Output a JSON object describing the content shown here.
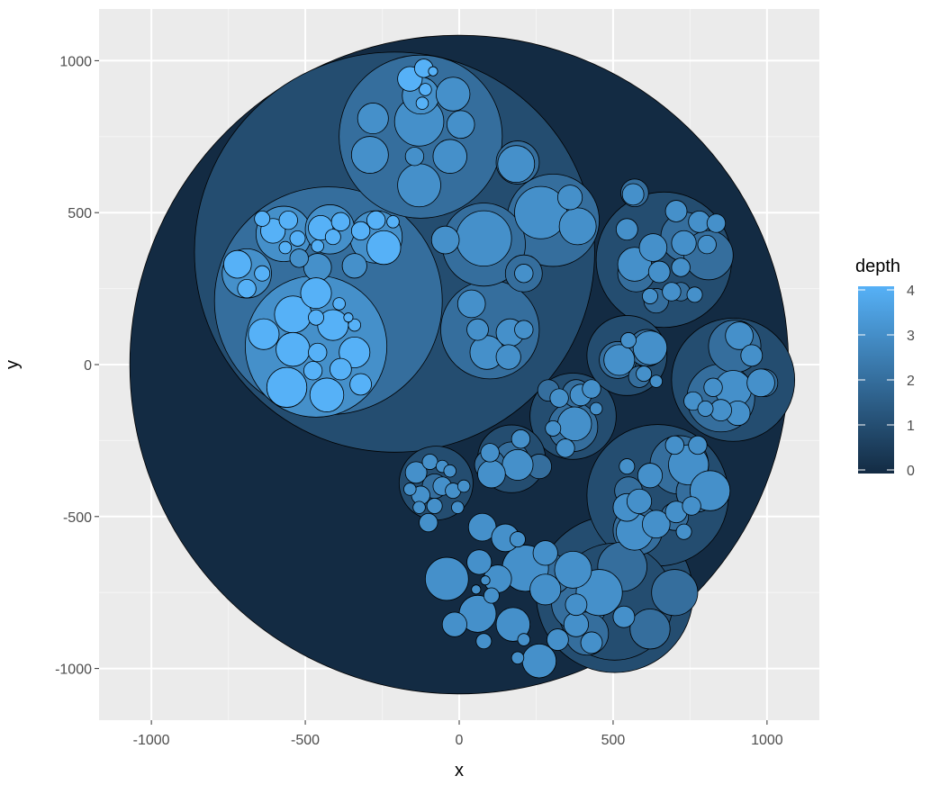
{
  "chart_data": {
    "type": "circle-packing",
    "xlabel": "x",
    "ylabel": "y",
    "xlim": [
      -1170,
      1170
    ],
    "ylim": [
      -1170,
      1170
    ],
    "x_ticks": [
      -1000,
      -500,
      0,
      500,
      1000
    ],
    "y_ticks": [
      -1000,
      -500,
      0,
      500,
      1000
    ],
    "x_tick_labels": [
      "-1000",
      "-500",
      "0",
      "500",
      "1000"
    ],
    "y_tick_labels": [
      "-1000",
      "-500",
      "0",
      "500",
      "1000"
    ],
    "grid": true,
    "legend": {
      "title": "depth",
      "placement": "right",
      "min": 0,
      "max": 4,
      "breaks": [
        0,
        1,
        2,
        3,
        4
      ],
      "labels": [
        "0",
        "1",
        "2",
        "3",
        "4"
      ],
      "low_color": "#132B43",
      "high_color": "#56B1F7"
    },
    "circles": [
      {
        "x": 0,
        "y": 0,
        "r": 1070,
        "depth": 0
      },
      {
        "x": -210,
        "y": 370,
        "r": 650,
        "depth": 1
      },
      {
        "x": 665,
        "y": 345,
        "r": 220,
        "depth": 1
      },
      {
        "x": 545,
        "y": 30,
        "r": 130,
        "depth": 1
      },
      {
        "x": 890,
        "y": -50,
        "r": 200,
        "depth": 1
      },
      {
        "x": 370,
        "y": -170,
        "r": 140,
        "depth": 1
      },
      {
        "x": 645,
        "y": -430,
        "r": 230,
        "depth": 1
      },
      {
        "x": 505,
        "y": -780,
        "r": 190,
        "depth": 1
      },
      {
        "x": 170,
        "y": -310,
        "r": 110,
        "depth": 1
      },
      {
        "x": -75,
        "y": -390,
        "r": 120,
        "depth": 1
      },
      {
        "x": 505,
        "y": -755,
        "r": 255,
        "depth": 1
      },
      {
        "x": -425,
        "y": 210,
        "r": 370,
        "depth": 2
      },
      {
        "x": -125,
        "y": 750,
        "r": 265,
        "depth": 2
      },
      {
        "x": 80,
        "y": 395,
        "r": 135,
        "depth": 2
      },
      {
        "x": 100,
        "y": 115,
        "r": 160,
        "depth": 2
      },
      {
        "x": 305,
        "y": 475,
        "r": 150,
        "depth": 2
      },
      {
        "x": 190,
        "y": 665,
        "r": 70,
        "depth": 2
      },
      {
        "x": 210,
        "y": 300,
        "r": 60,
        "depth": 2
      },
      {
        "x": 570,
        "y": 565,
        "r": 45,
        "depth": 2
      },
      {
        "x": 735,
        "y": 420,
        "r": 80,
        "depth": 2
      },
      {
        "x": 810,
        "y": 360,
        "r": 80,
        "depth": 2
      },
      {
        "x": 575,
        "y": 300,
        "r": 60,
        "depth": 2
      },
      {
        "x": 640,
        "y": 210,
        "r": 40,
        "depth": 2
      },
      {
        "x": 720,
        "y": 240,
        "r": 30,
        "depth": 2
      },
      {
        "x": 515,
        "y": 15,
        "r": 60,
        "depth": 2
      },
      {
        "x": 610,
        "y": 55,
        "r": 60,
        "depth": 2
      },
      {
        "x": 585,
        "y": -40,
        "r": 35,
        "depth": 2
      },
      {
        "x": 895,
        "y": 60,
        "r": 85,
        "depth": 2
      },
      {
        "x": 850,
        "y": -110,
        "r": 110,
        "depth": 2
      },
      {
        "x": 990,
        "y": -60,
        "r": 45,
        "depth": 2
      },
      {
        "x": 370,
        "y": -205,
        "r": 80,
        "depth": 2
      },
      {
        "x": 380,
        "y": -95,
        "r": 45,
        "depth": 2
      },
      {
        "x": 290,
        "y": -85,
        "r": 35,
        "depth": 2
      },
      {
        "x": 715,
        "y": -330,
        "r": 95,
        "depth": 2
      },
      {
        "x": 770,
        "y": -420,
        "r": 65,
        "depth": 2
      },
      {
        "x": 580,
        "y": -545,
        "r": 80,
        "depth": 2
      },
      {
        "x": 550,
        "y": -415,
        "r": 45,
        "depth": 2
      },
      {
        "x": 700,
        "y": -500,
        "r": 45,
        "depth": 2
      },
      {
        "x": 170,
        "y": -310,
        "r": 55,
        "depth": 2
      },
      {
        "x": 100,
        "y": -330,
        "r": 50,
        "depth": 2
      },
      {
        "x": -80,
        "y": -400,
        "r": 40,
        "depth": 2
      },
      {
        "x": 260,
        "y": -335,
        "r": 40,
        "depth": 2
      },
      {
        "x": 390,
        "y": -785,
        "r": 90,
        "depth": 2
      },
      {
        "x": 530,
        "y": -665,
        "r": 80,
        "depth": 2
      },
      {
        "x": 415,
        "y": -885,
        "r": 70,
        "depth": 2
      },
      {
        "x": 620,
        "y": -870,
        "r": 65,
        "depth": 2
      },
      {
        "x": 700,
        "y": -750,
        "r": 75,
        "depth": 2
      },
      {
        "x": 300,
        "y": -690,
        "r": 65,
        "depth": 2
      },
      {
        "x": -465,
        "y": 60,
        "r": 230,
        "depth": 3
      },
      {
        "x": -570,
        "y": 430,
        "r": 90,
        "depth": 3
      },
      {
        "x": -420,
        "y": 445,
        "r": 80,
        "depth": 3
      },
      {
        "x": -270,
        "y": 420,
        "r": 85,
        "depth": 3
      },
      {
        "x": -690,
        "y": 300,
        "r": 80,
        "depth": 3
      },
      {
        "x": -460,
        "y": 320,
        "r": 45,
        "depth": 3
      },
      {
        "x": -520,
        "y": 350,
        "r": 30,
        "depth": 3
      },
      {
        "x": -340,
        "y": 325,
        "r": 40,
        "depth": 3
      },
      {
        "x": -125,
        "y": 885,
        "r": 60,
        "depth": 3
      },
      {
        "x": -20,
        "y": 890,
        "r": 55,
        "depth": 3
      },
      {
        "x": -280,
        "y": 810,
        "r": 50,
        "depth": 3
      },
      {
        "x": -130,
        "y": 800,
        "r": 80,
        "depth": 3
      },
      {
        "x": 5,
        "y": 790,
        "r": 45,
        "depth": 3
      },
      {
        "x": -290,
        "y": 690,
        "r": 60,
        "depth": 3
      },
      {
        "x": -145,
        "y": 685,
        "r": 30,
        "depth": 3
      },
      {
        "x": -30,
        "y": 685,
        "r": 55,
        "depth": 3
      },
      {
        "x": -130,
        "y": 590,
        "r": 70,
        "depth": 3
      },
      {
        "x": 80,
        "y": 415,
        "r": 90,
        "depth": 3
      },
      {
        "x": -45,
        "y": 410,
        "r": 45,
        "depth": 3
      },
      {
        "x": 185,
        "y": 660,
        "r": 60,
        "depth": 3
      },
      {
        "x": 265,
        "y": 500,
        "r": 85,
        "depth": 3
      },
      {
        "x": 385,
        "y": 455,
        "r": 60,
        "depth": 3
      },
      {
        "x": 360,
        "y": 550,
        "r": 40,
        "depth": 3
      },
      {
        "x": 40,
        "y": 200,
        "r": 45,
        "depth": 3
      },
      {
        "x": 90,
        "y": 40,
        "r": 55,
        "depth": 3
      },
      {
        "x": 165,
        "y": 105,
        "r": 45,
        "depth": 3
      },
      {
        "x": 60,
        "y": 115,
        "r": 35,
        "depth": 3
      },
      {
        "x": 160,
        "y": 25,
        "r": 40,
        "depth": 3
      },
      {
        "x": 210,
        "y": 115,
        "r": 30,
        "depth": 3
      },
      {
        "x": 210,
        "y": 300,
        "r": 30,
        "depth": 3
      },
      {
        "x": 565,
        "y": 560,
        "r": 35,
        "depth": 3
      },
      {
        "x": 630,
        "y": 385,
        "r": 45,
        "depth": 3
      },
      {
        "x": 730,
        "y": 400,
        "r": 40,
        "depth": 3
      },
      {
        "x": 705,
        "y": 505,
        "r": 35,
        "depth": 3
      },
      {
        "x": 780,
        "y": 470,
        "r": 35,
        "depth": 3
      },
      {
        "x": 545,
        "y": 445,
        "r": 35,
        "depth": 3
      },
      {
        "x": 570,
        "y": 330,
        "r": 55,
        "depth": 3
      },
      {
        "x": 650,
        "y": 305,
        "r": 35,
        "depth": 3
      },
      {
        "x": 720,
        "y": 320,
        "r": 30,
        "depth": 3
      },
      {
        "x": 690,
        "y": 240,
        "r": 30,
        "depth": 3
      },
      {
        "x": 620,
        "y": 225,
        "r": 25,
        "depth": 3
      },
      {
        "x": 805,
        "y": 395,
        "r": 30,
        "depth": 3
      },
      {
        "x": 835,
        "y": 465,
        "r": 30,
        "depth": 3
      },
      {
        "x": 765,
        "y": 230,
        "r": 25,
        "depth": 3
      },
      {
        "x": 520,
        "y": 15,
        "r": 50,
        "depth": 3
      },
      {
        "x": 620,
        "y": 55,
        "r": 55,
        "depth": 3
      },
      {
        "x": 550,
        "y": 80,
        "r": 25,
        "depth": 3
      },
      {
        "x": 600,
        "y": -30,
        "r": 25,
        "depth": 3
      },
      {
        "x": 640,
        "y": -55,
        "r": 20,
        "depth": 3
      },
      {
        "x": 910,
        "y": 95,
        "r": 45,
        "depth": 3
      },
      {
        "x": 950,
        "y": 30,
        "r": 35,
        "depth": 3
      },
      {
        "x": 980,
        "y": -60,
        "r": 45,
        "depth": 3
      },
      {
        "x": 890,
        "y": -80,
        "r": 60,
        "depth": 3
      },
      {
        "x": 825,
        "y": -75,
        "r": 30,
        "depth": 3
      },
      {
        "x": 850,
        "y": -150,
        "r": 35,
        "depth": 3
      },
      {
        "x": 800,
        "y": -145,
        "r": 25,
        "depth": 3
      },
      {
        "x": 760,
        "y": -120,
        "r": 30,
        "depth": 3
      },
      {
        "x": 905,
        "y": -160,
        "r": 40,
        "depth": 3
      },
      {
        "x": 375,
        "y": -195,
        "r": 55,
        "depth": 3
      },
      {
        "x": 395,
        "y": -100,
        "r": 35,
        "depth": 3
      },
      {
        "x": 445,
        "y": -145,
        "r": 20,
        "depth": 3
      },
      {
        "x": 305,
        "y": -210,
        "r": 25,
        "depth": 3
      },
      {
        "x": 345,
        "y": -275,
        "r": 30,
        "depth": 3
      },
      {
        "x": 325,
        "y": -110,
        "r": 30,
        "depth": 3
      },
      {
        "x": 430,
        "y": -80,
        "r": 30,
        "depth": 3
      },
      {
        "x": 745,
        "y": -330,
        "r": 65,
        "depth": 3
      },
      {
        "x": 700,
        "y": -265,
        "r": 30,
        "depth": 3
      },
      {
        "x": 775,
        "y": -265,
        "r": 30,
        "depth": 3
      },
      {
        "x": 620,
        "y": -365,
        "r": 40,
        "depth": 3
      },
      {
        "x": 585,
        "y": -450,
        "r": 40,
        "depth": 3
      },
      {
        "x": 545,
        "y": -335,
        "r": 25,
        "depth": 3
      },
      {
        "x": 545,
        "y": -470,
        "r": 45,
        "depth": 3
      },
      {
        "x": 640,
        "y": -525,
        "r": 45,
        "depth": 3
      },
      {
        "x": 570,
        "y": -550,
        "r": 60,
        "depth": 3
      },
      {
        "x": 705,
        "y": -485,
        "r": 35,
        "depth": 3
      },
      {
        "x": 815,
        "y": -415,
        "r": 65,
        "depth": 3
      },
      {
        "x": 755,
        "y": -465,
        "r": 30,
        "depth": 3
      },
      {
        "x": 730,
        "y": -550,
        "r": 25,
        "depth": 3
      },
      {
        "x": 100,
        "y": -290,
        "r": 30,
        "depth": 3
      },
      {
        "x": 105,
        "y": -360,
        "r": 45,
        "depth": 3
      },
      {
        "x": 200,
        "y": -245,
        "r": 30,
        "depth": 3
      },
      {
        "x": 190,
        "y": -330,
        "r": 50,
        "depth": 3
      },
      {
        "x": -140,
        "y": -355,
        "r": 35,
        "depth": 3
      },
      {
        "x": -125,
        "y": -430,
        "r": 30,
        "depth": 3
      },
      {
        "x": -80,
        "y": -465,
        "r": 25,
        "depth": 3
      },
      {
        "x": -55,
        "y": -400,
        "r": 30,
        "depth": 3
      },
      {
        "x": -95,
        "y": -320,
        "r": 25,
        "depth": 3
      },
      {
        "x": -20,
        "y": -415,
        "r": 25,
        "depth": 3
      },
      {
        "x": -130,
        "y": -470,
        "r": 20,
        "depth": 3
      },
      {
        "x": -55,
        "y": -335,
        "r": 20,
        "depth": 3
      },
      {
        "x": -160,
        "y": -410,
        "r": 20,
        "depth": 3
      },
      {
        "x": -30,
        "y": -350,
        "r": 20,
        "depth": 3
      },
      {
        "x": 15,
        "y": -400,
        "r": 20,
        "depth": 3
      },
      {
        "x": -100,
        "y": -520,
        "r": 30,
        "depth": 3
      },
      {
        "x": -5,
        "y": -470,
        "r": 20,
        "depth": 3
      },
      {
        "x": 75,
        "y": -535,
        "r": 45,
        "depth": 3
      },
      {
        "x": 150,
        "y": -570,
        "r": 45,
        "depth": 3
      },
      {
        "x": -40,
        "y": -705,
        "r": 70,
        "depth": 3
      },
      {
        "x": 65,
        "y": -650,
        "r": 40,
        "depth": 3
      },
      {
        "x": 125,
        "y": -705,
        "r": 45,
        "depth": 3
      },
      {
        "x": 215,
        "y": -670,
        "r": 75,
        "depth": 3
      },
      {
        "x": 190,
        "y": -575,
        "r": 25,
        "depth": 3
      },
      {
        "x": 280,
        "y": -740,
        "r": 50,
        "depth": 3
      },
      {
        "x": 280,
        "y": -620,
        "r": 40,
        "depth": 3
      },
      {
        "x": 370,
        "y": -675,
        "r": 60,
        "depth": 3
      },
      {
        "x": 380,
        "y": -790,
        "r": 35,
        "depth": 3
      },
      {
        "x": 380,
        "y": -855,
        "r": 40,
        "depth": 3
      },
      {
        "x": 320,
        "y": -905,
        "r": 35,
        "depth": 3
      },
      {
        "x": 430,
        "y": -915,
        "r": 35,
        "depth": 3
      },
      {
        "x": 260,
        "y": -975,
        "r": 55,
        "depth": 3
      },
      {
        "x": 190,
        "y": -965,
        "r": 20,
        "depth": 3
      },
      {
        "x": 210,
        "y": -905,
        "r": 20,
        "depth": 3
      },
      {
        "x": 60,
        "y": -820,
        "r": 60,
        "depth": 3
      },
      {
        "x": 175,
        "y": -855,
        "r": 55,
        "depth": 3
      },
      {
        "x": -15,
        "y": -855,
        "r": 40,
        "depth": 3
      },
      {
        "x": 80,
        "y": -910,
        "r": 25,
        "depth": 3
      },
      {
        "x": 455,
        "y": -750,
        "r": 75,
        "depth": 3
      },
      {
        "x": 535,
        "y": -830,
        "r": 35,
        "depth": 3
      },
      {
        "x": 105,
        "y": -760,
        "r": 25,
        "depth": 3
      },
      {
        "x": 55,
        "y": -740,
        "r": 15,
        "depth": 3
      },
      {
        "x": 85,
        "y": -710,
        "r": 15,
        "depth": 3
      },
      {
        "x": -540,
        "y": 165,
        "r": 60,
        "depth": 4
      },
      {
        "x": -465,
        "y": 235,
        "r": 50,
        "depth": 4
      },
      {
        "x": -410,
        "y": 130,
        "r": 50,
        "depth": 4
      },
      {
        "x": -540,
        "y": 50,
        "r": 55,
        "depth": 4
      },
      {
        "x": -635,
        "y": 100,
        "r": 50,
        "depth": 4
      },
      {
        "x": -560,
        "y": -75,
        "r": 65,
        "depth": 4
      },
      {
        "x": -430,
        "y": -100,
        "r": 55,
        "depth": 4
      },
      {
        "x": -340,
        "y": 40,
        "r": 50,
        "depth": 4
      },
      {
        "x": -385,
        "y": -15,
        "r": 35,
        "depth": 4
      },
      {
        "x": -460,
        "y": 40,
        "r": 30,
        "depth": 4
      },
      {
        "x": -320,
        "y": -65,
        "r": 35,
        "depth": 4
      },
      {
        "x": -475,
        "y": -20,
        "r": 30,
        "depth": 4
      },
      {
        "x": -465,
        "y": 155,
        "r": 25,
        "depth": 4
      },
      {
        "x": -390,
        "y": 200,
        "r": 20,
        "depth": 4
      },
      {
        "x": -340,
        "y": 130,
        "r": 20,
        "depth": 4
      },
      {
        "x": -360,
        "y": 155,
        "r": 15,
        "depth": 4
      },
      {
        "x": -605,
        "y": 440,
        "r": 40,
        "depth": 4
      },
      {
        "x": -555,
        "y": 475,
        "r": 30,
        "depth": 4
      },
      {
        "x": -525,
        "y": 415,
        "r": 25,
        "depth": 4
      },
      {
        "x": -640,
        "y": 480,
        "r": 25,
        "depth": 4
      },
      {
        "x": -565,
        "y": 385,
        "r": 20,
        "depth": 4
      },
      {
        "x": -450,
        "y": 450,
        "r": 40,
        "depth": 4
      },
      {
        "x": -385,
        "y": 470,
        "r": 30,
        "depth": 4
      },
      {
        "x": -410,
        "y": 420,
        "r": 25,
        "depth": 4
      },
      {
        "x": -460,
        "y": 390,
        "r": 20,
        "depth": 4
      },
      {
        "x": -245,
        "y": 385,
        "r": 55,
        "depth": 4
      },
      {
        "x": -270,
        "y": 475,
        "r": 30,
        "depth": 4
      },
      {
        "x": -320,
        "y": 440,
        "r": 30,
        "depth": 4
      },
      {
        "x": -215,
        "y": 470,
        "r": 20,
        "depth": 4
      },
      {
        "x": -720,
        "y": 330,
        "r": 45,
        "depth": 4
      },
      {
        "x": -690,
        "y": 250,
        "r": 30,
        "depth": 4
      },
      {
        "x": -640,
        "y": 300,
        "r": 25,
        "depth": 4
      },
      {
        "x": -160,
        "y": 940,
        "r": 40,
        "depth": 4
      },
      {
        "x": -115,
        "y": 975,
        "r": 30,
        "depth": 4
      },
      {
        "x": -110,
        "y": 905,
        "r": 20,
        "depth": 4
      },
      {
        "x": -85,
        "y": 965,
        "r": 15,
        "depth": 4
      },
      {
        "x": -120,
        "y": 860,
        "r": 20,
        "depth": 4
      }
    ]
  }
}
